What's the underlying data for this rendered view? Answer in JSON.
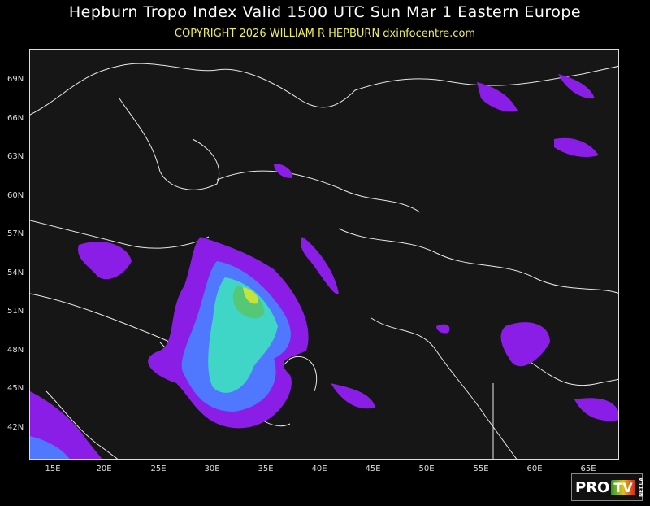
{
  "header": {
    "title": "Hepburn Tropo Index Valid 1500 UTC Sun Mar 1 Eastern Europe",
    "copyright": "COPYRIGHT 2026   WILLIAM R HEPBURN   dxinfocentre.com"
  },
  "map": {
    "lat_labels": [
      "69N",
      "66N",
      "63N",
      "60N",
      "57N",
      "54N",
      "51N",
      "48N",
      "45N",
      "42N"
    ],
    "lon_labels": [
      "15E",
      "20E",
      "25E",
      "30E",
      "35E",
      "40E",
      "45E",
      "50E",
      "55E",
      "60E",
      "65E"
    ],
    "index_colors": [
      "#8a1ee6",
      "#4f78ff",
      "#3fd6c8",
      "#55c878",
      "#c8e23c"
    ],
    "background_color": "#161616",
    "border_color": "#ffffff"
  },
  "logo": {
    "pro": "PRO",
    "tv": "TV",
    "net": "NET.UA"
  }
}
